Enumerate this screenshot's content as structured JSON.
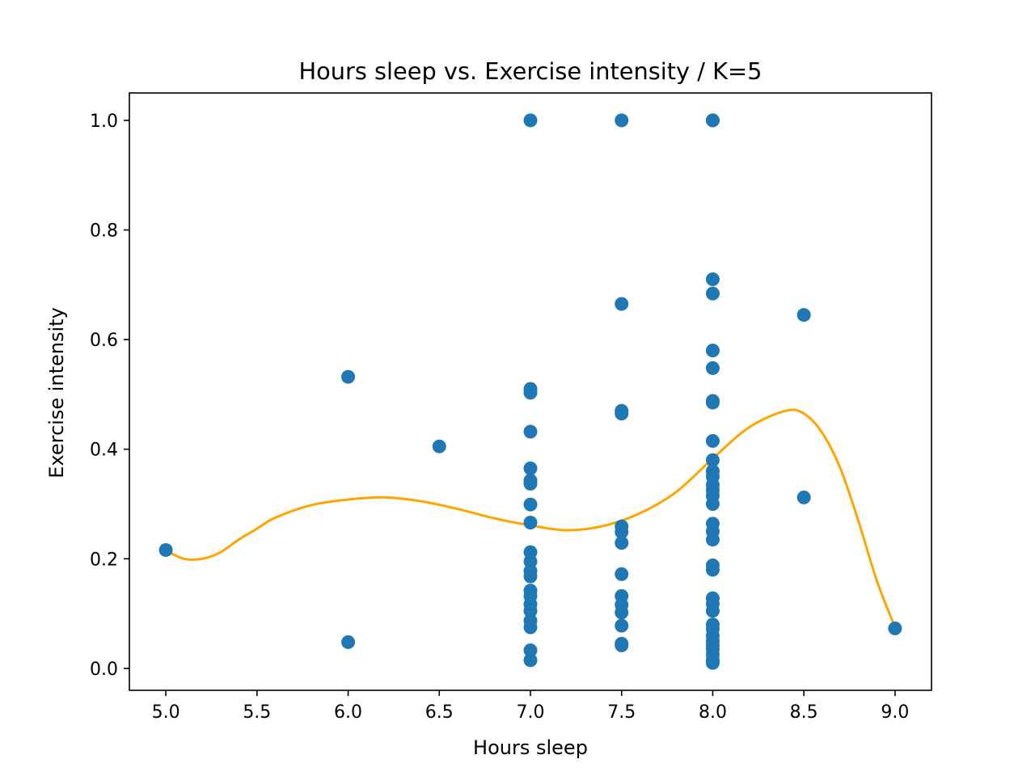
{
  "chart_data": {
    "type": "scatter",
    "title": "Hours sleep vs. Exercise intensity / K=5",
    "xlabel": "Hours sleep",
    "ylabel": "Exercise intensity",
    "xlim": [
      4.8,
      9.2
    ],
    "ylim": [
      -0.04,
      1.05
    ],
    "xticks": [
      5.0,
      5.5,
      6.0,
      6.5,
      7.0,
      7.5,
      8.0,
      8.5,
      9.0
    ],
    "xtick_labels": [
      "5.0",
      "5.5",
      "6.0",
      "6.5",
      "7.0",
      "7.5",
      "8.0",
      "8.5",
      "9.0"
    ],
    "yticks": [
      0.0,
      0.2,
      0.4,
      0.6,
      0.8,
      1.0
    ],
    "ytick_labels": [
      "0.0",
      "0.2",
      "0.4",
      "0.6",
      "0.8",
      "1.0"
    ],
    "grid": false,
    "colors": {
      "points": "#1f77b4",
      "curve": "#ffa500"
    },
    "points": [
      {
        "x": 5.0,
        "y": 0.216
      },
      {
        "x": 6.0,
        "y": 0.532
      },
      {
        "x": 6.0,
        "y": 0.048
      },
      {
        "x": 6.5,
        "y": 0.405
      },
      {
        "x": 7.0,
        "y": 1.0
      },
      {
        "x": 7.0,
        "y": 0.51
      },
      {
        "x": 7.0,
        "y": 0.503
      },
      {
        "x": 7.0,
        "y": 0.432
      },
      {
        "x": 7.0,
        "y": 0.365
      },
      {
        "x": 7.0,
        "y": 0.343
      },
      {
        "x": 7.0,
        "y": 0.337
      },
      {
        "x": 7.0,
        "y": 0.299
      },
      {
        "x": 7.0,
        "y": 0.266
      },
      {
        "x": 7.0,
        "y": 0.212
      },
      {
        "x": 7.0,
        "y": 0.195
      },
      {
        "x": 7.0,
        "y": 0.178
      },
      {
        "x": 7.0,
        "y": 0.168
      },
      {
        "x": 7.0,
        "y": 0.142
      },
      {
        "x": 7.0,
        "y": 0.132
      },
      {
        "x": 7.0,
        "y": 0.117
      },
      {
        "x": 7.0,
        "y": 0.105
      },
      {
        "x": 7.0,
        "y": 0.087
      },
      {
        "x": 7.0,
        "y": 0.075
      },
      {
        "x": 7.0,
        "y": 0.033
      },
      {
        "x": 7.0,
        "y": 0.015
      },
      {
        "x": 7.5,
        "y": 1.0
      },
      {
        "x": 7.5,
        "y": 0.665
      },
      {
        "x": 7.5,
        "y": 0.47
      },
      {
        "x": 7.5,
        "y": 0.465
      },
      {
        "x": 7.5,
        "y": 0.259
      },
      {
        "x": 7.5,
        "y": 0.249
      },
      {
        "x": 7.5,
        "y": 0.229
      },
      {
        "x": 7.5,
        "y": 0.172
      },
      {
        "x": 7.5,
        "y": 0.132
      },
      {
        "x": 7.5,
        "y": 0.116
      },
      {
        "x": 7.5,
        "y": 0.102
      },
      {
        "x": 7.5,
        "y": 0.078
      },
      {
        "x": 7.5,
        "y": 0.045
      },
      {
        "x": 7.5,
        "y": 0.042
      },
      {
        "x": 8.0,
        "y": 1.0
      },
      {
        "x": 8.0,
        "y": 1.0
      },
      {
        "x": 8.0,
        "y": 0.71
      },
      {
        "x": 8.0,
        "y": 0.684
      },
      {
        "x": 8.0,
        "y": 0.58
      },
      {
        "x": 8.0,
        "y": 0.548
      },
      {
        "x": 8.0,
        "y": 0.488
      },
      {
        "x": 8.0,
        "y": 0.485
      },
      {
        "x": 8.0,
        "y": 0.415
      },
      {
        "x": 8.0,
        "y": 0.38
      },
      {
        "x": 8.0,
        "y": 0.36
      },
      {
        "x": 8.0,
        "y": 0.35
      },
      {
        "x": 8.0,
        "y": 0.335
      },
      {
        "x": 8.0,
        "y": 0.325
      },
      {
        "x": 8.0,
        "y": 0.315
      },
      {
        "x": 8.0,
        "y": 0.3
      },
      {
        "x": 8.0,
        "y": 0.264
      },
      {
        "x": 8.0,
        "y": 0.25
      },
      {
        "x": 8.0,
        "y": 0.235
      },
      {
        "x": 8.0,
        "y": 0.188
      },
      {
        "x": 8.0,
        "y": 0.18
      },
      {
        "x": 8.0,
        "y": 0.128
      },
      {
        "x": 8.0,
        "y": 0.118
      },
      {
        "x": 8.0,
        "y": 0.105
      },
      {
        "x": 8.0,
        "y": 0.08
      },
      {
        "x": 8.0,
        "y": 0.072
      },
      {
        "x": 8.0,
        "y": 0.06
      },
      {
        "x": 8.0,
        "y": 0.05
      },
      {
        "x": 8.0,
        "y": 0.042
      },
      {
        "x": 8.0,
        "y": 0.035
      },
      {
        "x": 8.0,
        "y": 0.025
      },
      {
        "x": 8.0,
        "y": 0.015
      },
      {
        "x": 8.0,
        "y": 0.01
      },
      {
        "x": 8.5,
        "y": 0.645
      },
      {
        "x": 8.5,
        "y": 0.312
      },
      {
        "x": 9.0,
        "y": 0.073
      }
    ],
    "curve": {
      "x": [
        5.0,
        5.1,
        5.2,
        5.3,
        5.4,
        5.5,
        5.6,
        5.8,
        6.0,
        6.2,
        6.4,
        6.6,
        6.8,
        7.0,
        7.2,
        7.4,
        7.6,
        7.8,
        8.0,
        8.2,
        8.4,
        8.5,
        8.6,
        8.7,
        8.8,
        8.9,
        9.0
      ],
      "y": [
        0.215,
        0.2,
        0.2,
        0.212,
        0.235,
        0.255,
        0.275,
        0.298,
        0.308,
        0.312,
        0.305,
        0.291,
        0.274,
        0.261,
        0.252,
        0.26,
        0.283,
        0.322,
        0.383,
        0.44,
        0.47,
        0.465,
        0.43,
        0.365,
        0.268,
        0.16,
        0.075
      ]
    }
  }
}
